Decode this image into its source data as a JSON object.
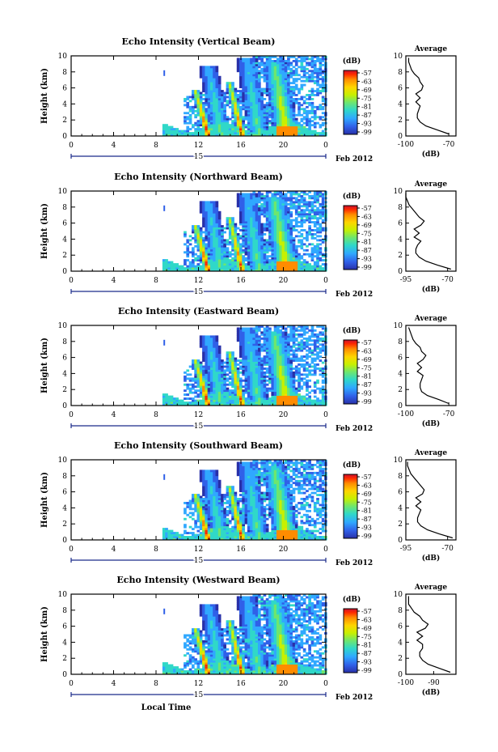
{
  "chart_data": [
    {
      "type": "heatmap",
      "title": "Echo Intensity (Vertical Beam)",
      "ylabel": "Height (km)",
      "ylim": [
        0,
        10
      ],
      "yticks": [
        "0",
        "2",
        "4",
        "6",
        "8",
        "10"
      ],
      "xticks": [
        "0",
        "4",
        "8",
        "12",
        "16",
        "20",
        "0"
      ],
      "xlim": [
        0,
        24
      ],
      "date_day": "15",
      "date_label": "Feb 2012",
      "colorbar": {
        "unit": "(dB)",
        "ticks": [
          "-57",
          "-63",
          "-69",
          "-75",
          "-81",
          "-87",
          "-93",
          "-99"
        ]
      },
      "profile": {
        "title": "Average",
        "xlabel": "(dB)",
        "xticks": [
          "-100",
          "-70"
        ],
        "xlim": [
          -100,
          -65
        ],
        "yticks": [
          "0",
          "2",
          "4",
          "6",
          "8",
          "10"
        ],
        "heights": [
          0,
          0.5,
          1,
          1.5,
          2,
          2.5,
          3,
          3.5,
          4,
          4.5,
          5,
          5.5,
          6,
          6.5,
          7,
          7.5,
          8,
          8.5,
          9,
          9.5
        ],
        "values": [
          -70,
          -78,
          -86,
          -90,
          -92,
          -92,
          -91,
          -90,
          -93,
          -90,
          -93,
          -89,
          -88,
          -90,
          -91,
          -94,
          -96,
          -97,
          -98,
          -98
        ]
      }
    },
    {
      "type": "heatmap",
      "title": "Echo Intensity (Northward Beam)",
      "ylabel": "Height (km)",
      "ylim": [
        0,
        10
      ],
      "yticks": [
        "0",
        "2",
        "4",
        "6",
        "8",
        "10"
      ],
      "xticks": [
        "0",
        "4",
        "8",
        "12",
        "16",
        "20",
        "0"
      ],
      "xlim": [
        0,
        24
      ],
      "date_day": "15",
      "date_label": "Feb 2012",
      "colorbar": {
        "unit": "(dB)",
        "ticks": [
          "-57",
          "-63",
          "-69",
          "-75",
          "-81",
          "-87",
          "-93",
          "-99"
        ]
      },
      "profile": {
        "title": "Average",
        "xlabel": "(dB)",
        "xticks": [
          "-95",
          "-70"
        ],
        "xlim": [
          -95,
          -65
        ],
        "heights": [
          0,
          0.5,
          1,
          1.5,
          2,
          2.5,
          3,
          3.5,
          4,
          4.5,
          5,
          5.5,
          6,
          6.5,
          7,
          7.5,
          8,
          8.5,
          9,
          9.5
        ],
        "values": [
          -68,
          -76,
          -83,
          -87,
          -89,
          -89,
          -88,
          -86,
          -90,
          -87,
          -90,
          -86,
          -84,
          -87,
          -89,
          -91,
          -93,
          -94,
          -95,
          -95
        ]
      }
    },
    {
      "type": "heatmap",
      "title": "Echo Intensity (Eastward Beam)",
      "ylabel": "Height (km)",
      "ylim": [
        0,
        10
      ],
      "yticks": [
        "0",
        "2",
        "4",
        "6",
        "8",
        "10"
      ],
      "xticks": [
        "0",
        "4",
        "8",
        "12",
        "16",
        "20",
        "0"
      ],
      "xlim": [
        0,
        24
      ],
      "date_day": "15",
      "date_label": "Feb 2012",
      "colorbar": {
        "unit": "(dB)",
        "ticks": [
          "-57",
          "-63",
          "-69",
          "-75",
          "-81",
          "-87",
          "-93",
          "-99"
        ]
      },
      "profile": {
        "title": "Average",
        "xlabel": "(dB)",
        "xticks": [
          "-100",
          "-70"
        ],
        "xlim": [
          -100,
          -65
        ],
        "heights": [
          0,
          0.5,
          1,
          1.5,
          2,
          2.5,
          3,
          3.5,
          4,
          4.5,
          5,
          5.5,
          6,
          6.5,
          7,
          7.5,
          8,
          8.5,
          9,
          9.5
        ],
        "values": [
          -70,
          -77,
          -85,
          -89,
          -90,
          -90,
          -89,
          -88,
          -92,
          -89,
          -92,
          -88,
          -86,
          -89,
          -90,
          -93,
          -95,
          -96,
          -97,
          -98
        ]
      }
    },
    {
      "type": "heatmap",
      "title": "Echo Intensity (Southward Beam)",
      "ylabel": "Height (km)",
      "ylim": [
        0,
        10
      ],
      "yticks": [
        "0",
        "2",
        "4",
        "6",
        "8",
        "10"
      ],
      "xticks": [
        "0",
        "4",
        "8",
        "12",
        "16",
        "20",
        "0"
      ],
      "xlim": [
        0,
        24
      ],
      "date_day": "15",
      "date_label": "Feb 2012",
      "colorbar": {
        "unit": "(dB)",
        "ticks": [
          "-57",
          "-63",
          "-69",
          "-75",
          "-81",
          "-87",
          "-93",
          "-99"
        ]
      },
      "profile": {
        "title": "Average",
        "xlabel": "(dB)",
        "xticks": [
          "-95",
          "-70"
        ],
        "xlim": [
          -95,
          -65
        ],
        "heights": [
          0,
          0.5,
          1,
          1.5,
          2,
          2.5,
          3,
          3.5,
          4,
          4.5,
          5,
          5.5,
          6,
          6.5,
          7,
          7.5,
          8,
          8.5,
          9,
          9.5
        ],
        "values": [
          -67,
          -75,
          -82,
          -86,
          -88,
          -88,
          -87,
          -86,
          -89,
          -86,
          -89,
          -85,
          -84,
          -86,
          -88,
          -90,
          -92,
          -93,
          -94,
          -94
        ]
      }
    },
    {
      "type": "heatmap",
      "title": "Echo Intensity (Westward Beam)",
      "ylabel": "Height (km)",
      "xlabel": "Local Time",
      "ylim": [
        0,
        10
      ],
      "yticks": [
        "0",
        "2",
        "4",
        "6",
        "8",
        "10"
      ],
      "xticks": [
        "0",
        "4",
        "8",
        "12",
        "16",
        "20",
        "0"
      ],
      "xlim": [
        0,
        24
      ],
      "date_day": "15",
      "date_label": "Feb 2012",
      "colorbar": {
        "unit": "(dB)",
        "ticks": [
          "-57",
          "-63",
          "-69",
          "-75",
          "-81",
          "-87",
          "-93",
          "-99"
        ]
      },
      "profile": {
        "title": "Average",
        "xlabel": "(dB)",
        "xticks": [
          "-100",
          "-90"
        ],
        "xlim": [
          -100,
          -82
        ],
        "heights": [
          0,
          0.5,
          1,
          1.5,
          2,
          2.5,
          3,
          3.5,
          4,
          4.5,
          5,
          5.5,
          6,
          6.5,
          7,
          7.5,
          8,
          8.5,
          9,
          9.5
        ],
        "values": [
          -84,
          -88,
          -92,
          -94,
          -95,
          -95,
          -94,
          -94,
          -96,
          -94,
          -96,
          -93,
          -92,
          -94,
          -95,
          -97,
          -98,
          -99,
          -99,
          -99
        ]
      }
    }
  ],
  "colors": {
    "scale": [
      "#c8102e",
      "#ff2a00",
      "#ff8c00",
      "#ffd400",
      "#c8f000",
      "#6ee66e",
      "#30d8c8",
      "#30a8ff",
      "#3060e8",
      "#2830a8"
    ]
  }
}
